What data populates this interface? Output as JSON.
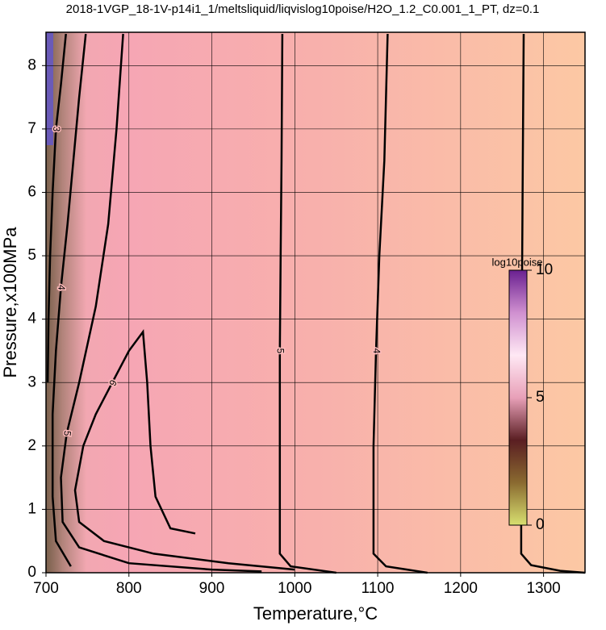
{
  "chart_data": {
    "type": "contour",
    "title": "2018-1VGP_18-1V-p14i1_1/meltsliquid/liqvislog10poise/H2O_1.2_C0.001_1_PT, dz=0.1",
    "xlabel": "Temperature,°C",
    "ylabel": "Pressure,x100MPa",
    "xlim": [
      700,
      1350
    ],
    "ylim": [
      0,
      8.5
    ],
    "xticks": [
      700,
      800,
      900,
      1000,
      1100,
      1200,
      1300
    ],
    "yticks": [
      0,
      1,
      2,
      3,
      4,
      5,
      6,
      7,
      8
    ],
    "grid": true,
    "line_color": "#000000",
    "contours": [
      {
        "level": 3,
        "x": [
          1276,
          1275,
          1274,
          1273,
          1273,
          1285,
          1320,
          1350
        ],
        "y": [
          8.5,
          6.5,
          4.5,
          2.5,
          0.3,
          0.12,
          0.03,
          0
        ]
      },
      {
        "level": 4,
        "x": [
          1112,
          1108,
          1102,
          1098,
          1095,
          1095,
          1110,
          1160
        ],
        "y": [
          8.5,
          6.5,
          5.0,
          3.5,
          2.0,
          0.3,
          0.1,
          0
        ]
      },
      {
        "level": 5,
        "x": [
          985,
          984,
          983,
          982,
          982,
          982,
          995,
          1050
        ],
        "y": [
          8.5,
          6.5,
          5.0,
          3.5,
          2.3,
          0.3,
          0.1,
          0
        ]
      },
      {
        "level": 6,
        "x": [
          880,
          850,
          832,
          826,
          822,
          817,
          800,
          780,
          760,
          745,
          735,
          740,
          770,
          830,
          920,
          1000
        ],
        "y": [
          0.62,
          0.7,
          1.2,
          2.0,
          3.0,
          3.8,
          3.5,
          3.0,
          2.5,
          2.0,
          1.3,
          0.8,
          0.5,
          0.3,
          0.15,
          0.05
        ]
      },
      {
        "level": 5,
        "x": [
          793,
          785,
          775,
          760,
          740,
          725,
          718,
          720,
          740,
          800,
          900,
          960
        ],
        "y": [
          8.5,
          7.0,
          5.5,
          4.2,
          3.0,
          2.2,
          1.5,
          0.8,
          0.4,
          0.15,
          0.05,
          0.02
        ]
      },
      {
        "level": 4,
        "x": [
          748,
          740,
          733,
          726,
          718,
          712,
          708,
          708,
          712,
          730
        ],
        "y": [
          8.5,
          7.5,
          6.5,
          5.5,
          4.5,
          3.5,
          2.5,
          1.2,
          0.5,
          0.1
        ]
      },
      {
        "level": 3,
        "x": [
          724,
          718,
          712,
          708,
          705,
          703,
          702
        ],
        "y": [
          8.5,
          7.7,
          7.0,
          6.0,
          5.0,
          4.0,
          3.0
        ]
      }
    ],
    "colorbar": {
      "label": "log10poise",
      "lim": [
        0,
        10
      ],
      "ticks": [
        0,
        5,
        10
      ],
      "colors": [
        "#d8e070",
        "#8a6a30",
        "#5a1e22",
        "#e8a0b8",
        "#ffe8f4",
        "#d090d0",
        "#6a2090"
      ]
    }
  }
}
